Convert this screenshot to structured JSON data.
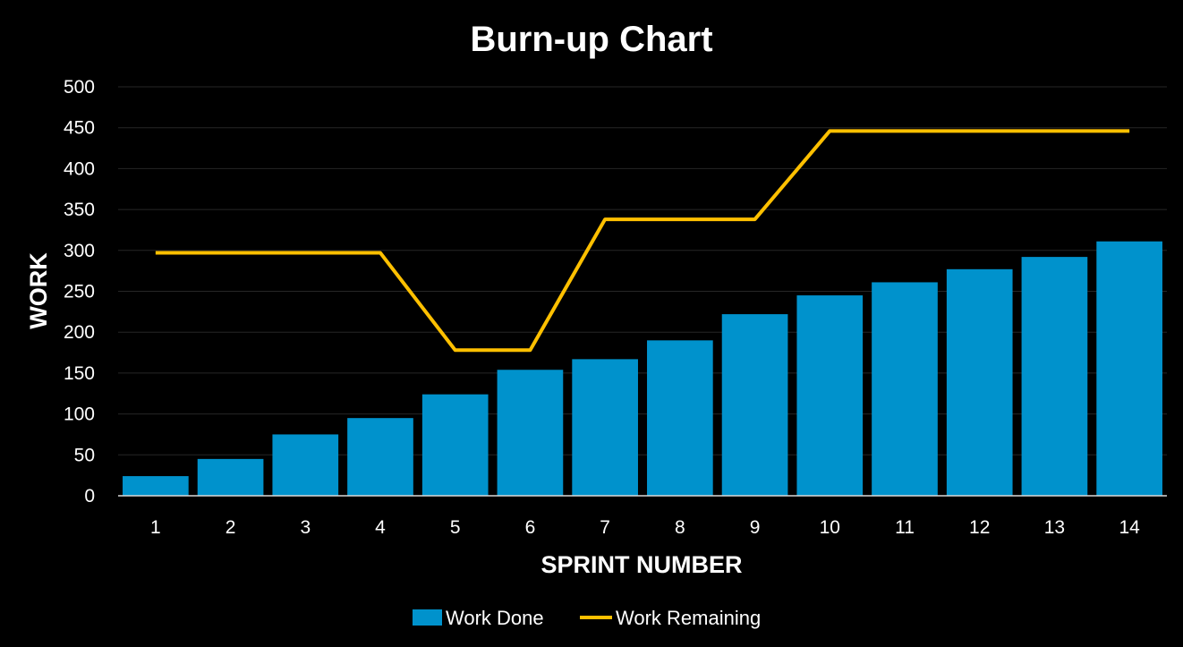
{
  "chart_data": {
    "type": "bar",
    "title": "Burn-up Chart",
    "xlabel": "SPRINT NUMBER",
    "ylabel": "WORK",
    "ylim": [
      0,
      500
    ],
    "yticks": [
      0,
      50,
      100,
      150,
      200,
      250,
      300,
      350,
      400,
      450,
      500
    ],
    "grid": true,
    "legend_position": "bottom",
    "categories": [
      "1",
      "2",
      "3",
      "4",
      "5",
      "6",
      "7",
      "8",
      "9",
      "10",
      "11",
      "12",
      "13",
      "14"
    ],
    "series": [
      {
        "name": "Work Done",
        "type": "bar",
        "color": "#0092CC",
        "values": [
          24,
          45,
          75,
          95,
          124,
          154,
          167,
          190,
          222,
          245,
          261,
          277,
          292,
          311
        ]
      },
      {
        "name": "Work Remaining",
        "type": "line",
        "color": "#FFC000",
        "values": [
          297,
          297,
          297,
          297,
          178,
          178,
          338,
          338,
          338,
          446,
          446,
          446,
          446,
          446
        ]
      }
    ]
  }
}
